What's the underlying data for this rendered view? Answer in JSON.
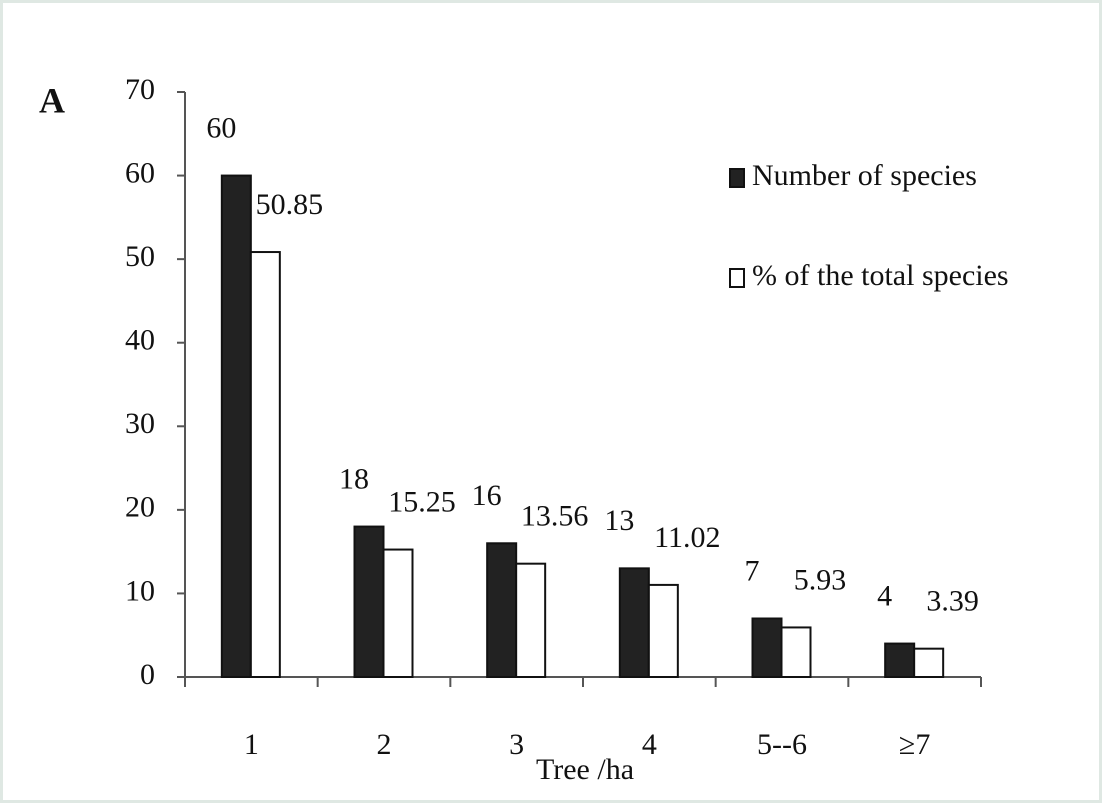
{
  "chart_data": {
    "type": "bar",
    "title": "A",
    "xlabel": "Tree /ha",
    "categories": [
      "1",
      "2",
      "3",
      "4",
      "5--6",
      "≥7"
    ],
    "series": [
      {
        "name": "Number of species",
        "color": "#222222",
        "values": [
          60,
          18,
          16,
          13,
          7,
          4
        ]
      },
      {
        "name": "% of the total species",
        "color": "#ffffff",
        "values": [
          50.85,
          15.25,
          13.56,
          11.02,
          5.93,
          3.39
        ]
      }
    ],
    "ylim": [
      0,
      70
    ],
    "yticks": [
      0,
      10,
      20,
      30,
      40,
      50,
      60,
      70
    ],
    "grid": false,
    "legend": "upper right"
  }
}
